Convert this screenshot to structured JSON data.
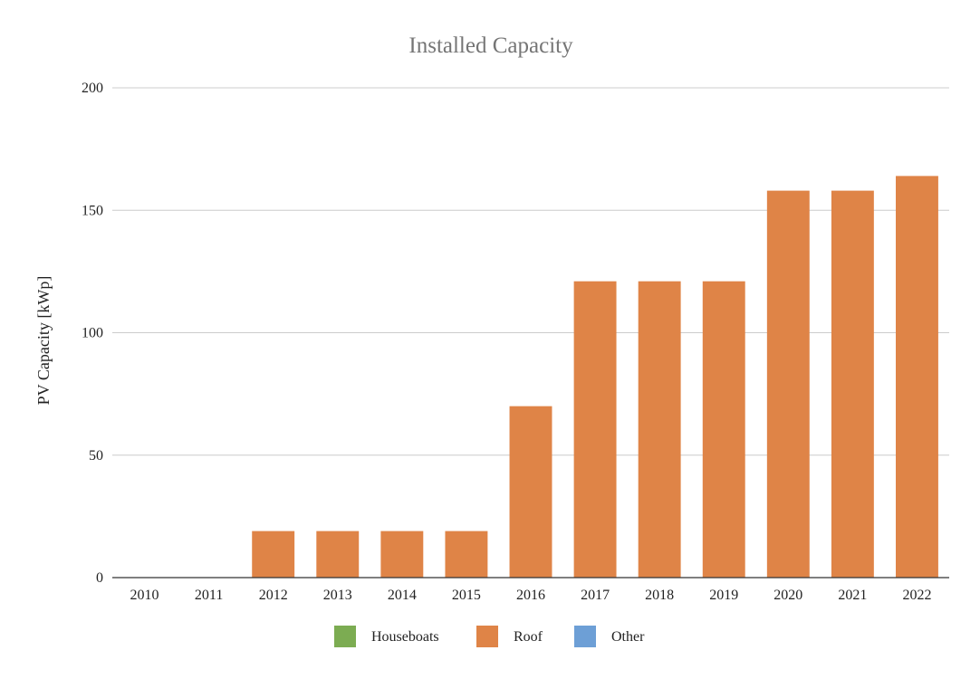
{
  "chart_data": {
    "type": "bar",
    "title": "Installed Capacity",
    "xlabel": "",
    "ylabel": "PV Capacity [kWp]",
    "ylim": [
      0,
      200
    ],
    "yticks": [
      0,
      50,
      100,
      150,
      200
    ],
    "grid": true,
    "legend_position": "bottom",
    "categories": [
      "2010",
      "2011",
      "2012",
      "2013",
      "2014",
      "2015",
      "2016",
      "2017",
      "2018",
      "2019",
      "2020",
      "2021",
      "2022"
    ],
    "series": [
      {
        "name": "Houseboats",
        "color": "#7cac52",
        "values": [
          0,
          0,
          0,
          0,
          0,
          0,
          0,
          0,
          0,
          0,
          0,
          0,
          0
        ]
      },
      {
        "name": "Roof",
        "color": "#df8447",
        "values": [
          0,
          0,
          19,
          19,
          19,
          19,
          70,
          121,
          121,
          121,
          158,
          158,
          164
        ]
      },
      {
        "name": "Other",
        "color": "#6d9fd6",
        "values": [
          0,
          0,
          0,
          0,
          0,
          0,
          0,
          0,
          0,
          0,
          0,
          0,
          0
        ]
      }
    ]
  }
}
